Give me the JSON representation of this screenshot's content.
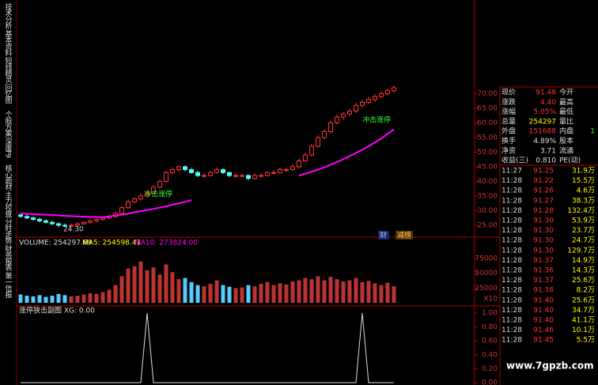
{
  "tabs": [
    "技术分析",
    "基本资料",
    "短线精灵",
    "回忆图",
    "个股方案",
    "深度F9",
    "核心题材",
    "主力控盘",
    "分时走势",
    "财务报表",
    "第一信报"
  ],
  "price_chart": {
    "ylim": [
      22,
      102
    ],
    "yticks": [
      {
        "value": 70,
        "label": "70.00"
      },
      {
        "value": 65,
        "label": "65.00"
      },
      {
        "value": 60,
        "label": "60.00"
      },
      {
        "value": 55,
        "label": "55.00"
      },
      {
        "value": 50,
        "label": "50.00"
      },
      {
        "value": 45,
        "label": "45.00"
      },
      {
        "value": 40,
        "label": "40.00"
      },
      {
        "value": 35,
        "label": "35.00"
      },
      {
        "value": 30,
        "label": "30.00"
      },
      {
        "value": 25,
        "label": "25.00"
      }
    ],
    "candles": [
      [
        28.5,
        29.2,
        27.6,
        28
      ],
      [
        28,
        28.6,
        27,
        27.5
      ],
      [
        27.5,
        28,
        26.5,
        27
      ],
      [
        27,
        27.6,
        26,
        26.5
      ],
      [
        26.5,
        27,
        25.5,
        26
      ],
      [
        26,
        26.6,
        25,
        25.5
      ],
      [
        25.5,
        26,
        24.3,
        25
      ],
      [
        25,
        25.6,
        24.3,
        24.8
      ],
      [
        24.8,
        25.6,
        24.4,
        25
      ],
      [
        25,
        26,
        24.6,
        25.5
      ],
      [
        25.5,
        26.4,
        25.1,
        26
      ],
      [
        26,
        27,
        25.6,
        26.5
      ],
      [
        26.5,
        27.4,
        26,
        27
      ],
      [
        27,
        28,
        26.6,
        27.5
      ],
      [
        27.5,
        28.6,
        27,
        28
      ],
      [
        28,
        29.6,
        27.6,
        29
      ],
      [
        29,
        31.6,
        28.6,
        31
      ],
      [
        31,
        33.8,
        30.5,
        33
      ],
      [
        33,
        34.6,
        32.4,
        34
      ],
      [
        34,
        35.8,
        33.4,
        35
      ],
      [
        35,
        37,
        34.5,
        36
      ],
      [
        36,
        38.8,
        35.5,
        38
      ],
      [
        38,
        40.6,
        37.5,
        40
      ],
      [
        40,
        43.6,
        39.5,
        43
      ],
      [
        43,
        44.8,
        42.4,
        44
      ],
      [
        44,
        45.6,
        43.3,
        45
      ],
      [
        45,
        45.5,
        43.4,
        44
      ],
      [
        44,
        44.6,
        42.6,
        43
      ],
      [
        43,
        43.6,
        41.5,
        42
      ],
      [
        42,
        42.8,
        41.4,
        42
      ],
      [
        42,
        43.6,
        41.6,
        43
      ],
      [
        43,
        44.8,
        42.6,
        44
      ],
      [
        44,
        44.5,
        42.5,
        43
      ],
      [
        43,
        43.4,
        41.4,
        42
      ],
      [
        42,
        42.7,
        41.3,
        42
      ],
      [
        42,
        42.5,
        41.5,
        42
      ],
      [
        42,
        42.4,
        40.4,
        41
      ],
      [
        41,
        42.6,
        40.6,
        42
      ],
      [
        42,
        42.8,
        41.4,
        42
      ],
      [
        42,
        43.6,
        41.6,
        43
      ],
      [
        43,
        43.8,
        42.4,
        43
      ],
      [
        43,
        44.7,
        42.6,
        44
      ],
      [
        44,
        44.8,
        43.4,
        44
      ],
      [
        44,
        45.7,
        43.6,
        45
      ],
      [
        45,
        47.8,
        44.5,
        47
      ],
      [
        47,
        49.8,
        46.5,
        49
      ],
      [
        49,
        52.8,
        48.5,
        52
      ],
      [
        52,
        55.8,
        51.5,
        55
      ],
      [
        55,
        57.8,
        54.4,
        57
      ],
      [
        57,
        60.8,
        56.4,
        60
      ],
      [
        60,
        62.8,
        59.4,
        62
      ],
      [
        62,
        63.8,
        61,
        63
      ],
      [
        63,
        64.8,
        62.2,
        64
      ],
      [
        64,
        66.8,
        63.4,
        66
      ],
      [
        66,
        67.8,
        65.3,
        67
      ],
      [
        67,
        68.8,
        66.4,
        68
      ],
      [
        68,
        69.8,
        67.2,
        69
      ],
      [
        69,
        70.8,
        68.4,
        70
      ],
      [
        70,
        71.8,
        69.3,
        71
      ],
      [
        71,
        72.8,
        70.2,
        72
      ]
    ],
    "ma_line": [
      29,
      28.9,
      28.8,
      28.7,
      28.6,
      28.5,
      28.4,
      28.2,
      28.1,
      28,
      27.9,
      27.8,
      27.8,
      27.7,
      28,
      28.3,
      28.6,
      29,
      29.4,
      29.8,
      30.2,
      30.6,
      31,
      31.5,
      32,
      32.5,
      33,
      33.6,
      null,
      null,
      null,
      null,
      null,
      null,
      null,
      null,
      null,
      null,
      null,
      null,
      null,
      null,
      null,
      null,
      42,
      42.6,
      43.3,
      44,
      44.8,
      45.7,
      46.6,
      47.6,
      48.6,
      49.7,
      50.8,
      52,
      53.3,
      54.7,
      56.2,
      57.8
    ],
    "low_label": "24.30",
    "signals": [
      "冲击涨停",
      "冲击涨停"
    ],
    "badges": [
      "财",
      "减榜"
    ]
  },
  "volume_chart": {
    "header": [
      "VOLUME: 254297.69",
      "MA5: 254598.41",
      "MA10: 273824.00"
    ],
    "ylim": [
      0,
      80000
    ],
    "yticks": [
      25000,
      50000,
      75000
    ],
    "unit_label": "X10",
    "values": [
      14000,
      12000,
      11000,
      13000,
      10000,
      12000,
      15000,
      13000,
      11000,
      12000,
      14000,
      16000,
      15000,
      18000,
      22000,
      30000,
      45000,
      58000,
      62000,
      70000,
      55000,
      60000,
      48000,
      65000,
      52000,
      40000,
      42000,
      35000,
      30000,
      28000,
      32000,
      38000,
      30000,
      27000,
      25000,
      26000,
      30000,
      28000,
      32000,
      35000,
      30000,
      33000,
      31000,
      36000,
      38000,
      42000,
      40000,
      45000,
      38000,
      44000,
      40000,
      36000,
      38000,
      42000,
      35000,
      37000,
      33000,
      30000,
      34000,
      28000
    ]
  },
  "indicator_chart": {
    "header": "涨停狭击副图 XG: 0.00",
    "ylim": [
      0,
      1
    ],
    "yticks": [
      {
        "value": 1,
        "label": "1.00"
      },
      {
        "value": 0.8,
        "label": "0.80"
      },
      {
        "value": 0.6,
        "label": "0.60"
      },
      {
        "value": 0.4,
        "label": "0.40"
      },
      {
        "value": 0.2,
        "label": "0.20"
      },
      {
        "value": 0,
        "label": "0.00"
      }
    ],
    "values": [
      0,
      0,
      0,
      0,
      0,
      0,
      0,
      0,
      0,
      0,
      0,
      0,
      0,
      0,
      0,
      0,
      0,
      0,
      0,
      0,
      1,
      0,
      0,
      0,
      0,
      0,
      0,
      0,
      0,
      0,
      0,
      0,
      0,
      0,
      0,
      0,
      0,
      0,
      0,
      0,
      0,
      0,
      0,
      0,
      0,
      0,
      0,
      0,
      0,
      0,
      0,
      0,
      0,
      0,
      1,
      0,
      0,
      0,
      0,
      0
    ]
  },
  "quote": [
    {
      "label": "现价",
      "value": "91.48",
      "label2": "今开"
    },
    {
      "label": "涨跌",
      "value": "4.40",
      "label2": "最高"
    },
    {
      "label": "涨幅",
      "value": "5.05%",
      "label2": "最低"
    },
    {
      "label": "总量",
      "value": "254297",
      "label2": "量比"
    },
    {
      "label": "外盘",
      "value": "151688",
      "label2": "内盘",
      "extra": "1"
    },
    {
      "label": "换手",
      "value": "4.89%",
      "label2": "股本"
    },
    {
      "label": "净资",
      "value": "3.71",
      "label2": "流通"
    },
    {
      "label": "收益(三)",
      "value": "0.810",
      "label2": "PE(动)"
    }
  ],
  "ticks": [
    [
      "11:27",
      "91.25",
      "31.9万"
    ],
    [
      "11:28",
      "91.22",
      "15.5万"
    ],
    [
      "11:28",
      "91.26",
      "4.6万"
    ],
    [
      "11:28",
      "91.27",
      "38.3万"
    ],
    [
      "11:28",
      "91.28",
      "132.4万"
    ],
    [
      "11:28",
      "91.30",
      "53.9万"
    ],
    [
      "11:28",
      "91.30",
      "23.7万"
    ],
    [
      "11:28",
      "91.30",
      "24.7万"
    ],
    [
      "11:28",
      "91.30",
      "129.7万"
    ],
    [
      "11:28",
      "91.37",
      "14.9万"
    ],
    [
      "11:28",
      "91.36",
      "14.3万"
    ],
    [
      "11:28",
      "91.37",
      "25.6万"
    ],
    [
      "11:28",
      "91.38",
      "8.2万"
    ],
    [
      "11:28",
      "91.40",
      "25.6万"
    ],
    [
      "11:28",
      "91.40",
      "34.7万"
    ],
    [
      "11:28",
      "91.40",
      "41.1万"
    ],
    [
      "11:28",
      "91.46",
      "10.1万"
    ],
    [
      "11:28",
      "91.45",
      "5.5万"
    ]
  ],
  "watermark": "www.7gpzb.com"
}
